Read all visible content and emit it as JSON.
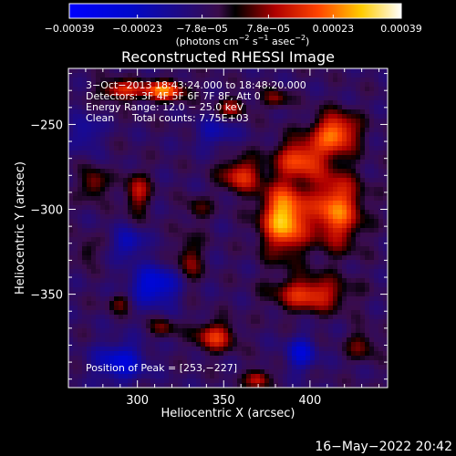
{
  "chart_data": {
    "type": "heatmap",
    "title": "Reconstructed RHESSI Image",
    "xlabel": "Heliocentric X (arcsec)",
    "ylabel": "Heliocentric Y (arcsec)",
    "xlim": [
      260,
      445
    ],
    "ylim": [
      -405,
      -217
    ],
    "xticks": [
      300,
      350,
      400
    ],
    "yticks": [
      -250,
      -300,
      -350
    ],
    "xtick_labels": [
      "300",
      "350",
      "400"
    ],
    "ytick_labels": [
      "−250",
      "−300",
      "−350"
    ],
    "colorbar": {
      "range": [
        -0.00039,
        0.00039
      ],
      "ticks": [
        -0.00039,
        -0.00023,
        -7.8e-05,
        7.8e-05,
        0.00023,
        0.00039
      ],
      "tick_labels": [
        "−0.00039",
        "−0.00023",
        "−7.8e−05",
        "7.8e−05",
        "0.00023",
        "0.00039"
      ],
      "units_prefix": "(photons cm",
      "units_exp1": "−2",
      "units_mid": " s",
      "units_exp2": "−1",
      "units_mid2": " asec",
      "units_exp3": "−2",
      "units_suffix": ")"
    },
    "annotations": {
      "time_range": "3−Oct−2013 18:43:24.000 to 18:48:20.000",
      "detectors": "Detectors: 3F 4F 5F 6F 7F 8F, Att 0",
      "energy": "Energy Range: 12.0 − 25.0 keV",
      "clean": "Clean",
      "counts": "Total counts: 7.75E+03",
      "peak": "Position of Peak = [253,−227]"
    },
    "peak": {
      "x": 253,
      "y": -227
    },
    "blobs": [
      {
        "x": 385,
        "y": -305,
        "amp": 0.00038,
        "sx": 9,
        "sy": 14
      },
      {
        "x": 415,
        "y": -255,
        "amp": 0.0003,
        "sx": 9,
        "sy": 8
      },
      {
        "x": 415,
        "y": -300,
        "amp": 0.0003,
        "sx": 10,
        "sy": 15
      },
      {
        "x": 395,
        "y": -270,
        "amp": 0.00025,
        "sx": 10,
        "sy": 8
      },
      {
        "x": 360,
        "y": -280,
        "amp": 0.00022,
        "sx": 8,
        "sy": 7
      },
      {
        "x": 315,
        "y": -230,
        "amp": 0.0003,
        "sx": 9,
        "sy": 4
      },
      {
        "x": 290,
        "y": -230,
        "amp": 0.00022,
        "sx": 8,
        "sy": 4
      },
      {
        "x": 400,
        "y": -350,
        "amp": 0.00024,
        "sx": 14,
        "sy": 7
      },
      {
        "x": 345,
        "y": -375,
        "amp": 0.00022,
        "sx": 8,
        "sy": 6
      },
      {
        "x": 370,
        "y": -400,
        "amp": 0.0002,
        "sx": 5,
        "sy": 4
      },
      {
        "x": 300,
        "y": -290,
        "amp": 0.00018,
        "sx": 5,
        "sy": 8
      },
      {
        "x": 275,
        "y": -285,
        "amp": 0.00016,
        "sx": 5,
        "sy": 6
      },
      {
        "x": 330,
        "y": -330,
        "amp": 0.00014,
        "sx": 5,
        "sy": 10
      },
      {
        "x": 355,
        "y": -240,
        "amp": 0.00016,
        "sx": 6,
        "sy": 4
      },
      {
        "x": 380,
        "y": -235,
        "amp": 0.00014,
        "sx": 5,
        "sy": 4
      },
      {
        "x": 290,
        "y": -355,
        "amp": 0.00012,
        "sx": 5,
        "sy": 4
      },
      {
        "x": 315,
        "y": -370,
        "amp": 0.00012,
        "sx": 5,
        "sy": 4
      },
      {
        "x": 335,
        "y": -300,
        "amp": 0.0001,
        "sx": 5,
        "sy": 5
      },
      {
        "x": 270,
        "y": -325,
        "amp": 0.0001,
        "sx": 4,
        "sy": 5
      },
      {
        "x": 430,
        "y": -380,
        "amp": 0.00012,
        "sx": 6,
        "sy": 6
      },
      {
        "x": 310,
        "y": -345,
        "amp": -0.00022,
        "sx": 10,
        "sy": 8
      },
      {
        "x": 290,
        "y": -390,
        "amp": -0.0002,
        "sx": 10,
        "sy": 8
      },
      {
        "x": 395,
        "y": -385,
        "amp": -0.00018,
        "sx": 6,
        "sy": 7
      },
      {
        "x": 295,
        "y": -320,
        "amp": -0.00016,
        "sx": 6,
        "sy": 6
      },
      {
        "x": 345,
        "y": -255,
        "amp": -0.00012,
        "sx": 8,
        "sy": 6
      },
      {
        "x": 270,
        "y": -255,
        "amp": -0.00012,
        "sx": 6,
        "sy": 7
      }
    ]
  },
  "footer": {
    "timestamp": "16−May−2022 20:42"
  }
}
